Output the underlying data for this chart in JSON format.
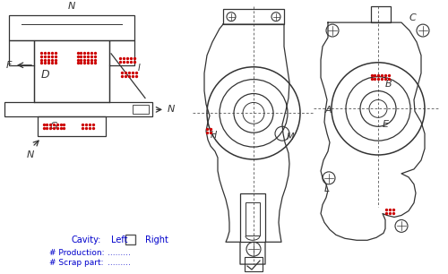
{
  "bg_color": "#ffffff",
  "line_color": "#333333",
  "defect_color": "#cc0000",
  "label_color": "#0000cc",
  "legend_text_cavity": "Cavity:",
  "legend_text_left": "Left",
  "legend_text_right": "Right",
  "legend_text_production": "# Production:",
  "legend_text_scrap": "# Scrap part:",
  "legend_dots": "........."
}
